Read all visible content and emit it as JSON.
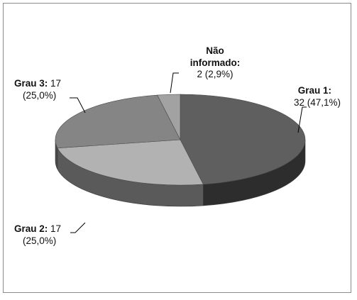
{
  "chart_data": {
    "type": "pie",
    "style": "3d",
    "slices": [
      {
        "category": "Grau 1",
        "category_label": "Grau 1:",
        "value": 32,
        "value_label": "32 (47,1%)",
        "percent": 47.1,
        "color": "#5f5f5f",
        "side_color": "#2d2d2d"
      },
      {
        "category": "Grau 2",
        "category_label": "Grau 2:",
        "value": 17,
        "value_label": "17",
        "percent_label": "(25,0%)",
        "percent": 25.0,
        "color": "#b2b2b2",
        "side_color": "#5a5a5a"
      },
      {
        "category": "Grau 3",
        "category_label": "Grau 3:",
        "value": 17,
        "value_label": "17",
        "percent_label": "(25,0%)",
        "percent": 25.0,
        "color": "#858585",
        "side_color": "#4a4a4a"
      },
      {
        "category": "Não informado",
        "category_label_lines": [
          "Não",
          "informado:"
        ],
        "value": 2,
        "value_label": "2 (2,9%)",
        "percent": 2.9,
        "color": "#a2a2a2",
        "side_color": "#595959"
      }
    ],
    "title": "",
    "legend": "none"
  }
}
